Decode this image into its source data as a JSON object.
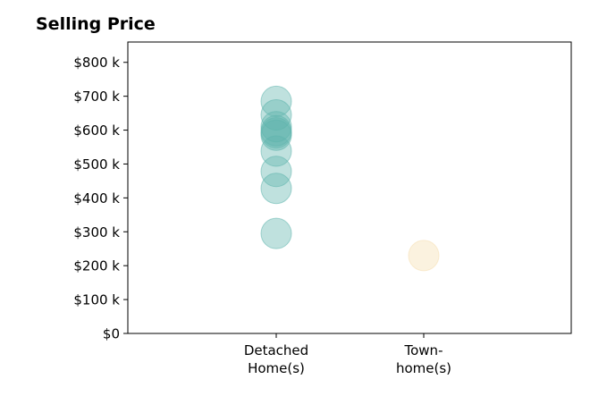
{
  "chart_data": {
    "type": "scatter",
    "title": "Selling Price",
    "xlabel": "",
    "ylabel": "",
    "categories": [
      [
        "Detached",
        "Home(s)"
      ],
      [
        "Town-",
        "home(s)"
      ]
    ],
    "ylim": [
      0,
      860000
    ],
    "y_ticks": [
      {
        "value": 0,
        "label": "$0"
      },
      {
        "value": 100000,
        "label": "$100 k"
      },
      {
        "value": 200000,
        "label": "$200 k"
      },
      {
        "value": 300000,
        "label": "$300 k"
      },
      {
        "value": 400000,
        "label": "$400 k"
      },
      {
        "value": 500000,
        "label": "$500 k"
      },
      {
        "value": 600000,
        "label": "$600 k"
      },
      {
        "value": 700000,
        "label": "$700 k"
      },
      {
        "value": 800000,
        "label": "$800 k"
      }
    ],
    "grid": false,
    "series": [
      {
        "category_index": 0,
        "color": "#5fb5ad",
        "values": [
          685000,
          645000,
          610000,
          598000,
          592000,
          585000,
          538000,
          478000,
          428000,
          295000
        ]
      },
      {
        "category_index": 1,
        "color": "#f5deb0",
        "values": [
          230000
        ]
      }
    ]
  }
}
